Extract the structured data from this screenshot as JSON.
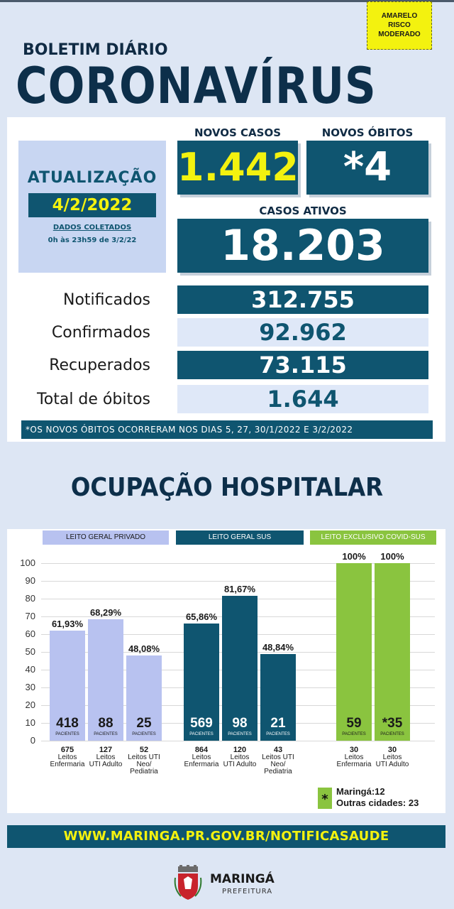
{
  "risk": {
    "l1": "AMARELO",
    "l2": "RISCO",
    "l3": "MODERADO"
  },
  "header": {
    "subtitle": "BOLETIM DIÁRIO",
    "title": "CORONAVÍRUS"
  },
  "update": {
    "label": "ATUALIZAÇÃO",
    "date": "4/2/2022",
    "note1": "DADOS COLETADOS",
    "note2": "0h às 23h59 de 3/2/22"
  },
  "kpis": {
    "new_cases_label": "NOVOS CASOS",
    "new_cases": "1.442",
    "new_deaths_label": "NOVOS ÓBITOS",
    "new_deaths": "*4",
    "active_label": "CASOS ATIVOS",
    "active": "18.203"
  },
  "totals": {
    "notified_label": "Notificados",
    "notified": "312.755",
    "confirmed_label": "Confirmados",
    "confirmed": "92.962",
    "recovered_label": "Recuperados",
    "recovered": "73.115",
    "deaths_label": "Total de óbitos",
    "deaths": "1.644"
  },
  "footnote": "*OS NOVOS  ÓBITOS OCORRERAM NOS DIAS 5, 27, 30/1/2022 E 3/2/2022",
  "occupancy_title": "OCUPAÇÃO HOSPITALAR",
  "chart_data": {
    "type": "bar",
    "y_ticks": [
      "100",
      "90",
      "80",
      "70",
      "60",
      "50",
      "40",
      "30",
      "20",
      "10",
      "0"
    ],
    "ylim": [
      0,
      100
    ],
    "groups": [
      {
        "name": "LEITO GERAL PRIVADO",
        "color": "#b8c2f0",
        "bars": [
          {
            "pct": 61.93,
            "pct_label": "61,93%",
            "patients": "418",
            "patients_label": "PACIENTES",
            "beds": "675",
            "bed_type": [
              "Leitos",
              "Enfermaria"
            ]
          },
          {
            "pct": 68.29,
            "pct_label": "68,29%",
            "patients": "88",
            "patients_label": "PACIENTES",
            "beds": "127",
            "bed_type": [
              "Leitos",
              "UTI Adulto"
            ]
          },
          {
            "pct": 48.08,
            "pct_label": "48,08%",
            "patients": "25",
            "patients_label": "PACIENTES",
            "beds": "52",
            "bed_type": [
              "Leitos UTI",
              "Neo/",
              "Pediatria"
            ]
          }
        ]
      },
      {
        "name": "LEITO GERAL SUS",
        "color": "#0f5570",
        "bars": [
          {
            "pct": 65.86,
            "pct_label": "65,86%",
            "patients": "569",
            "patients_label": "PACIENTES",
            "beds": "864",
            "bed_type": [
              "Leitos",
              "Enfermaria"
            ]
          },
          {
            "pct": 81.67,
            "pct_label": "81,67%",
            "patients": "98",
            "patients_label": "PACIENTES",
            "beds": "120",
            "bed_type": [
              "Leitos",
              "UTI Adulto"
            ]
          },
          {
            "pct": 48.84,
            "pct_label": "48,84%",
            "patients": "21",
            "patients_label": "PACIENTES",
            "beds": "43",
            "bed_type": [
              "Leitos UTI",
              "Neo/",
              "Pediatria"
            ]
          }
        ]
      },
      {
        "name": "LEITO EXCLUSIVO COVID-SUS",
        "color": "#8ac43f",
        "bars": [
          {
            "pct": 100,
            "pct_label": "100%",
            "patients": "59",
            "patients_label": "PACIENTES",
            "beds": "30",
            "bed_type": [
              "Leitos",
              "Enfermaria"
            ]
          },
          {
            "pct": 100,
            "pct_label": "100%",
            "patients": "*35",
            "patients_label": "PACIENTES",
            "beds": "30",
            "bed_type": [
              "Leitos",
              "UTI Adulto"
            ]
          }
        ]
      }
    ]
  },
  "legend": {
    "mark": "*",
    "line1": "Maringá:12",
    "line2": "Outras cidades: 23"
  },
  "url": "WWW.MARINGA.PR.GOV.BR/NOTIFICASAUDE",
  "logo": {
    "name": "MARINGÁ",
    "sub": "PREFEITURA"
  }
}
